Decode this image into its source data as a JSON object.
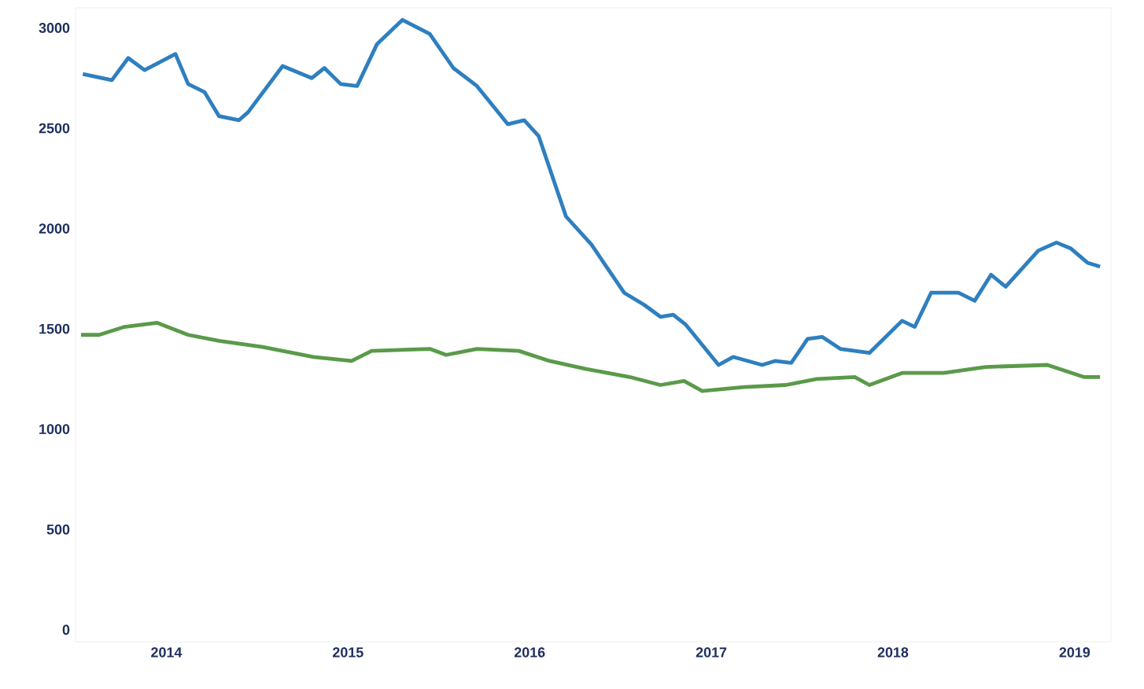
{
  "chart_data": {
    "type": "line",
    "xlim": [
      2013.5,
      2019.2
    ],
    "ylim": [
      -60,
      3100
    ],
    "xticks": [
      2014,
      2015,
      2016,
      2017,
      2018,
      2019
    ],
    "yticks": [
      0,
      500,
      1000,
      1500,
      2000,
      2500,
      3000
    ],
    "grid": false,
    "marker": "none",
    "line_style": "solid",
    "series": [
      {
        "color": "#2e7fbf",
        "x": [
          2013.54,
          2013.7,
          2013.79,
          2013.88,
          2014.05,
          2014.12,
          2014.21,
          2014.29,
          2014.4,
          2014.45,
          2014.64,
          2014.8,
          2014.87,
          2014.96,
          2015.05,
          2015.16,
          2015.3,
          2015.45,
          2015.58,
          2015.71,
          2015.88,
          2015.97,
          2016.05,
          2016.2,
          2016.34,
          2016.52,
          2016.63,
          2016.72,
          2016.79,
          2016.86,
          2017.04,
          2017.12,
          2017.28,
          2017.35,
          2017.44,
          2017.53,
          2017.61,
          2017.71,
          2017.87,
          2018.05,
          2018.12,
          2018.21,
          2018.36,
          2018.45,
          2018.54,
          2018.62,
          2018.8,
          2018.9,
          2018.98,
          2019.07,
          2019.14
        ],
        "values": [
          2770,
          2740,
          2850,
          2790,
          2870,
          2720,
          2680,
          2560,
          2540,
          2580,
          2810,
          2750,
          2800,
          2720,
          2710,
          2920,
          3040,
          2970,
          2800,
          2710,
          2520,
          2540,
          2460,
          2060,
          1920,
          1680,
          1620,
          1560,
          1570,
          1520,
          1320,
          1360,
          1320,
          1340,
          1330,
          1450,
          1460,
          1400,
          1380,
          1540,
          1510,
          1680,
          1680,
          1640,
          1770,
          1710,
          1890,
          1930,
          1900,
          1830,
          1810
        ]
      },
      {
        "color": "#5a9a4a",
        "x": [
          2013.53,
          2013.63,
          2013.77,
          2013.95,
          2014.12,
          2014.29,
          2014.53,
          2014.81,
          2015.02,
          2015.13,
          2015.45,
          2015.54,
          2015.71,
          2015.94,
          2016.11,
          2016.31,
          2016.55,
          2016.72,
          2016.85,
          2016.95,
          2017.18,
          2017.41,
          2017.58,
          2017.79,
          2017.87,
          2018.05,
          2018.28,
          2018.51,
          2018.85,
          2019.05,
          2019.14
        ],
        "values": [
          1470,
          1470,
          1510,
          1530,
          1470,
          1440,
          1410,
          1360,
          1340,
          1390,
          1400,
          1370,
          1400,
          1390,
          1340,
          1300,
          1260,
          1220,
          1240,
          1190,
          1210,
          1220,
          1250,
          1260,
          1220,
          1280,
          1280,
          1310,
          1320,
          1260,
          1260
        ]
      }
    ]
  }
}
